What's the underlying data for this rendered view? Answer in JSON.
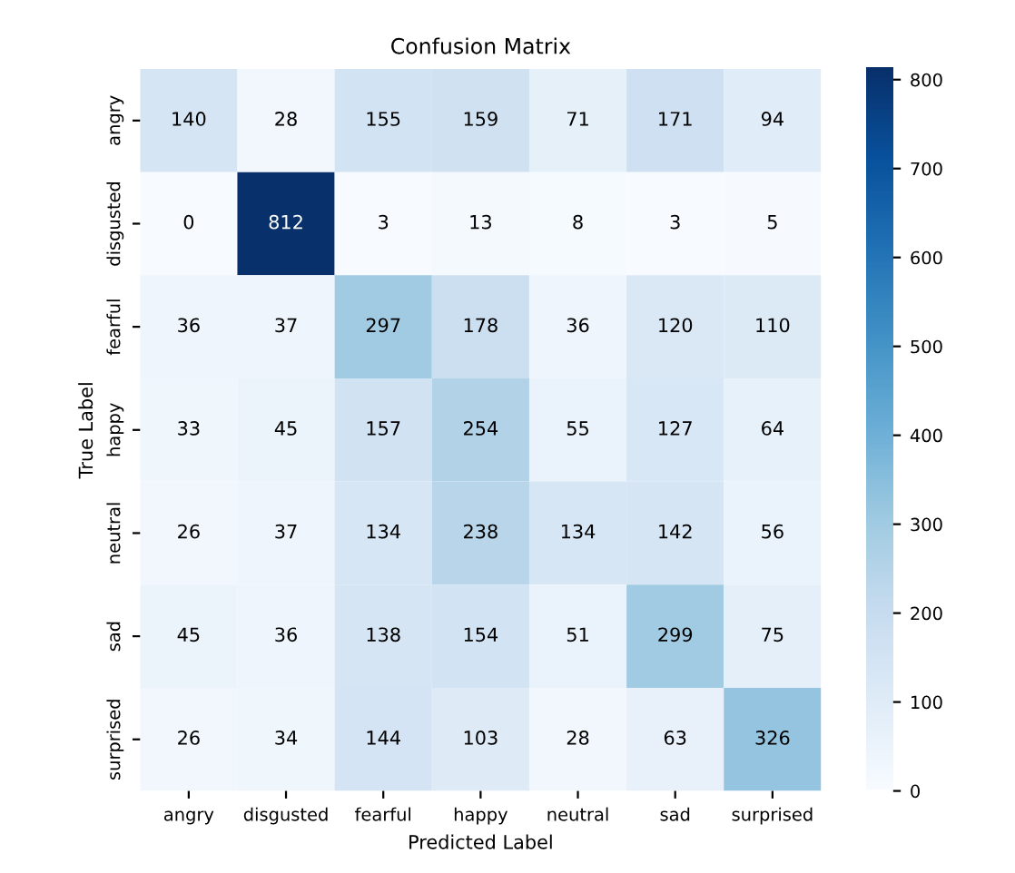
{
  "chart_data": {
    "type": "heatmap",
    "title": "Confusion Matrix",
    "xlabel": "Predicted Label",
    "ylabel": "True Label",
    "categories": [
      "angry",
      "disgusted",
      "fearful",
      "happy",
      "neutral",
      "sad",
      "surprised"
    ],
    "y_categories": [
      "angry",
      "disgusted",
      "fearful",
      "happy",
      "neutral",
      "sad",
      "surprised"
    ],
    "cells": [
      [
        140,
        28,
        155,
        159,
        71,
        171,
        94
      ],
      [
        0,
        812,
        3,
        13,
        8,
        3,
        5
      ],
      [
        36,
        37,
        297,
        178,
        36,
        120,
        110
      ],
      [
        33,
        45,
        157,
        254,
        55,
        127,
        64
      ],
      [
        26,
        37,
        134,
        238,
        134,
        142,
        56
      ],
      [
        45,
        36,
        138,
        154,
        51,
        299,
        75
      ],
      [
        26,
        34,
        144,
        103,
        28,
        63,
        326
      ]
    ],
    "clim": [
      0,
      812
    ],
    "cticks": [
      0,
      100,
      200,
      300,
      400,
      500,
      600,
      700,
      800
    ],
    "data_labels": true
  }
}
